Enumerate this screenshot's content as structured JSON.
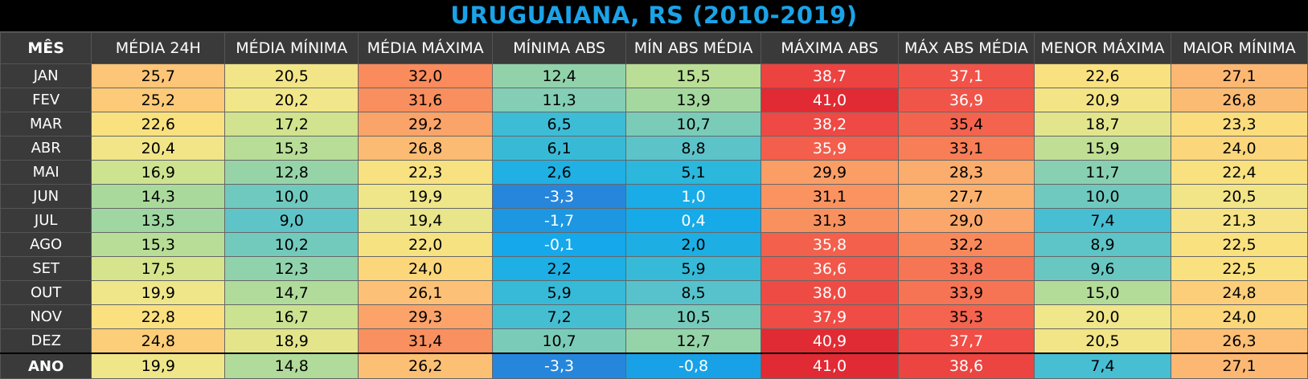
{
  "title": "URUGUAIANA, RS (2010-2019)",
  "chart_data": {
    "type": "table",
    "title": "URUGUAIANA, RS (2010-2019)",
    "columns": [
      "MÊS",
      "MÉDIA 24H",
      "MÉDIA MÍNIMA",
      "MÉDIA MÁXIMA",
      "MÍNIMA ABS",
      "MÍN ABS MÉDIA",
      "MÁXIMA ABS",
      "MÁX ABS MÉDIA",
      "MENOR MÁXIMA",
      "MAIOR MÍNIMA"
    ],
    "rows": [
      {
        "label": "JAN",
        "values": [
          "25,7",
          "20,5",
          "32,0",
          "12,4",
          "15,5",
          "38,7",
          "37,1",
          "22,6",
          "27,1"
        ]
      },
      {
        "label": "FEV",
        "values": [
          "25,2",
          "20,2",
          "31,6",
          "11,3",
          "13,9",
          "41,0",
          "36,9",
          "20,9",
          "26,8"
        ]
      },
      {
        "label": "MAR",
        "values": [
          "22,6",
          "17,2",
          "29,2",
          "6,5",
          "10,7",
          "38,2",
          "35,4",
          "18,7",
          "23,3"
        ]
      },
      {
        "label": "ABR",
        "values": [
          "20,4",
          "15,3",
          "26,8",
          "6,1",
          "8,8",
          "35,9",
          "33,1",
          "15,9",
          "24,0"
        ]
      },
      {
        "label": "MAI",
        "values": [
          "16,9",
          "12,8",
          "22,3",
          "2,6",
          "5,1",
          "29,9",
          "28,3",
          "11,7",
          "22,4"
        ]
      },
      {
        "label": "JUN",
        "values": [
          "14,3",
          "10,0",
          "19,9",
          "-3,3",
          "1,0",
          "31,1",
          "27,7",
          "10,0",
          "20,5"
        ]
      },
      {
        "label": "JUL",
        "values": [
          "13,5",
          "9,0",
          "19,4",
          "-1,7",
          "0,4",
          "31,3",
          "29,0",
          "7,4",
          "21,3"
        ]
      },
      {
        "label": "AGO",
        "values": [
          "15,3",
          "10,2",
          "22,0",
          "-0,1",
          "2,0",
          "35,8",
          "32,2",
          "8,9",
          "22,5"
        ]
      },
      {
        "label": "SET",
        "values": [
          "17,5",
          "12,3",
          "24,0",
          "2,2",
          "5,9",
          "36,6",
          "33,8",
          "9,6",
          "22,5"
        ]
      },
      {
        "label": "OUT",
        "values": [
          "19,9",
          "14,7",
          "26,1",
          "5,9",
          "8,5",
          "38,0",
          "33,9",
          "15,0",
          "24,8"
        ]
      },
      {
        "label": "NOV",
        "values": [
          "22,8",
          "16,7",
          "29,3",
          "7,2",
          "10,5",
          "37,9",
          "35,3",
          "20,0",
          "24,0"
        ]
      },
      {
        "label": "DEZ",
        "values": [
          "24,8",
          "18,9",
          "31,4",
          "10,7",
          "12,7",
          "40,9",
          "37,7",
          "20,5",
          "26,3"
        ]
      },
      {
        "label": "ANO",
        "values": [
          "19,9",
          "14,8",
          "26,2",
          "-3,3",
          "-0,8",
          "41,0",
          "38,6",
          "7,4",
          "27,1"
        ]
      }
    ],
    "color_scale": {
      "stops": [
        {
          "t": -4,
          "color": "#2a7fd8"
        },
        {
          "t": 0,
          "color": "#14a9ea"
        },
        {
          "t": 5,
          "color": "#2bb7dc"
        },
        {
          "t": 8,
          "color": "#4fc0cf"
        },
        {
          "t": 11,
          "color": "#7fcdb7"
        },
        {
          "t": 14,
          "color": "#a6d89e"
        },
        {
          "t": 17,
          "color": "#cfe38e"
        },
        {
          "t": 20,
          "color": "#f0e68a"
        },
        {
          "t": 23,
          "color": "#fbe07e"
        },
        {
          "t": 26,
          "color": "#fcc276"
        },
        {
          "t": 29,
          "color": "#fba66a"
        },
        {
          "t": 32,
          "color": "#f98b5c"
        },
        {
          "t": 35,
          "color": "#f4674f"
        },
        {
          "t": 38,
          "color": "#ef4b45"
        },
        {
          "t": 41,
          "color": "#e12a33"
        }
      ]
    }
  },
  "colors": {
    "title": "#1aa3e8",
    "header_bg": "#3a3a3a",
    "background": "#000000"
  }
}
